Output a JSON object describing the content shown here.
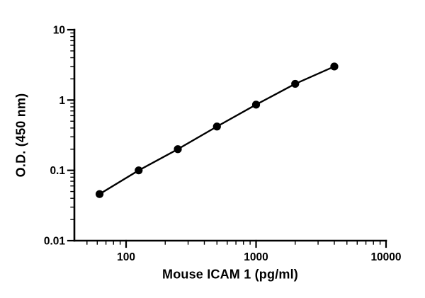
{
  "chart_data": {
    "type": "scatter",
    "subtype": "standard-curve-with-connecting-line",
    "title": "",
    "xlabel": "Mouse ICAM 1 (pg/ml)",
    "ylabel": "O.D. (450 nm)",
    "x_scale": "log",
    "y_scale": "log",
    "xlim": [
      40,
      10000
    ],
    "ylim": [
      0.01,
      10
    ],
    "x": [
      62.5,
      125,
      250,
      500,
      1000,
      2000,
      4000
    ],
    "y": [
      0.046,
      0.1,
      0.2,
      0.42,
      0.86,
      1.7,
      3.0
    ],
    "x_major_ticks": [
      100,
      1000,
      10000
    ],
    "x_major_tick_labels": [
      "100",
      "1000",
      "10000"
    ],
    "y_major_ticks": [
      0.01,
      0.1,
      1,
      10
    ],
    "y_major_tick_labels": [
      "0.01",
      "0.1",
      "1",
      "10"
    ],
    "grid": false,
    "legend": "none",
    "line_color": "#000000",
    "marker_color": "#000000",
    "axis_color": "#000000",
    "background_color": "#ffffff"
  }
}
